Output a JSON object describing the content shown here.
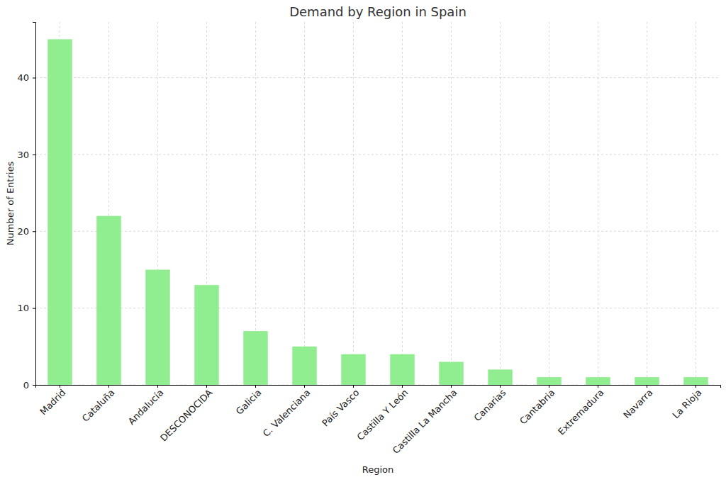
{
  "chart_data": {
    "type": "bar",
    "title": "Demand by Region in Spain",
    "x_label": "Region",
    "y_label": "Number of Entries",
    "categories": [
      "Madrid",
      "Cataluña",
      "Andalucía",
      "DESCONOCIDA",
      "Galicia",
      "C. Valenciana",
      "País Vasco",
      "Castilla Y León",
      "Castilla La Mancha",
      "Canarias",
      "Cantabria",
      "Extremadura",
      "Navarra",
      "La Rioja"
    ],
    "values": [
      45,
      22,
      15,
      13,
      7,
      5,
      4,
      4,
      3,
      2,
      1,
      1,
      1,
      1
    ],
    "color": "#90ee90",
    "ylim": [
      0,
      47.25
    ],
    "yticks": [
      0,
      10,
      20,
      30,
      40
    ],
    "grid": true
  }
}
